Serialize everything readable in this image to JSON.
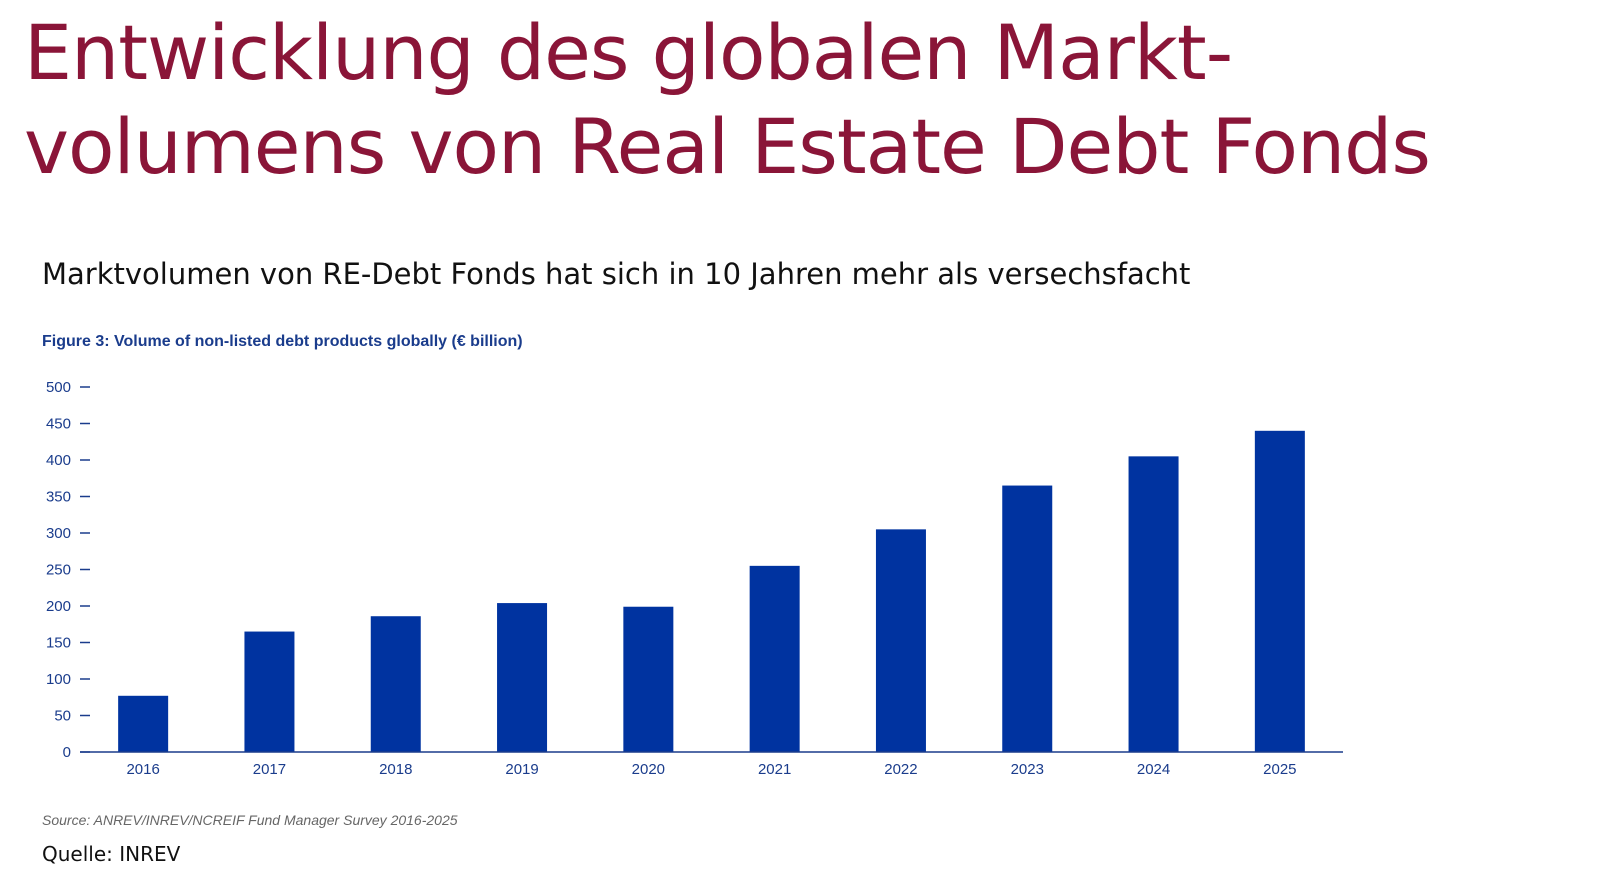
{
  "slide": {
    "title": "Entwicklung des globalen Markt-volumens von Real Estate Debt Fonds",
    "subtitle": "Marktvolumen von RE-Debt Fonds hat sich in 10 Jahren mehr als versechsfacht",
    "footer_source": "Quelle: INREV"
  },
  "chart_data": {
    "type": "bar",
    "title": "Figure 3: Volume of non-listed debt products globally (€ billion)",
    "categories": [
      "2016",
      "2017",
      "2018",
      "2019",
      "2020",
      "2021",
      "2022",
      "2023",
      "2024",
      "2025"
    ],
    "values": [
      77,
      165,
      186,
      204,
      199,
      255,
      305,
      365,
      405,
      440
    ],
    "ylim": [
      0,
      500
    ],
    "yticks": [
      0,
      50,
      100,
      150,
      200,
      250,
      300,
      350,
      400,
      450,
      500
    ],
    "grid": false,
    "legend": "none",
    "source": "Source: ANREV/INREV/NCREIF Fund Manager Survey 2016-2025"
  },
  "colors": {
    "title": "#8a1538",
    "bar": "#0033a0",
    "axis": "#1a3c8c",
    "figure_title": "#1a3c8c"
  }
}
